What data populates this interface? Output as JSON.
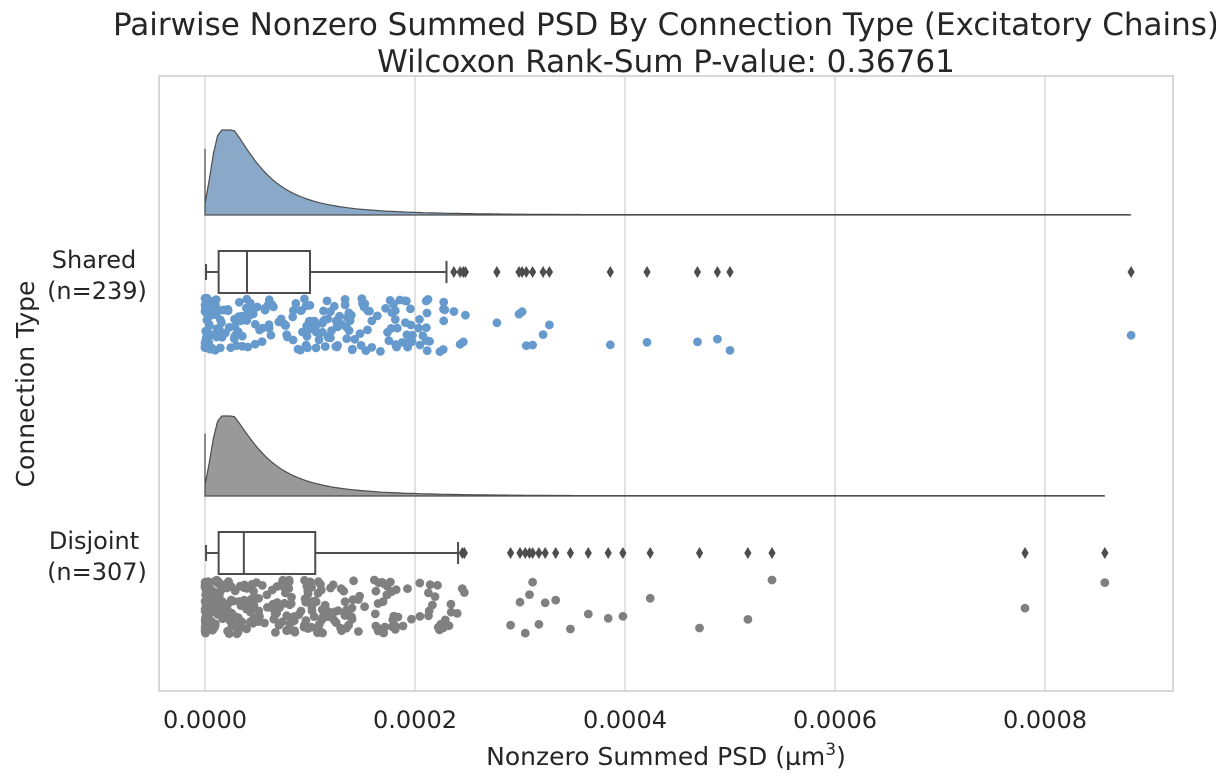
{
  "chart_data": {
    "type": "raincloud",
    "title_line1": "Pairwise Nonzero Summed PSD By Connection Type (Excitatory Chains)",
    "title_line2": "Wilcoxon Rank-Sum P-value: 0.36761",
    "xlabel": "Nonzero Summed PSD (µm",
    "xlabel_sup": "3",
    "xlabel_close": ")",
    "ylabel": "Connection Type",
    "xlim": [
      -5.5e-05,
      0.000925
    ],
    "xticks": [
      0.0,
      0.0002,
      0.0004,
      0.0006,
      0.0008
    ],
    "xtick_labels": [
      "0.0000",
      "0.0002",
      "0.0004",
      "0.0006",
      "0.0008"
    ],
    "grid": true,
    "groups": [
      {
        "label_line1": "Shared",
        "label_line2": "(n=239)",
        "color": "#6699cc",
        "cloud_color": "#8aa9c8",
        "box": {
          "min": 1e-06,
          "q1": 1.3e-05,
          "median": 4e-05,
          "q3": 0.0001,
          "whisker_high": 0.00023
        },
        "outliers": [
          0.000237,
          0.000243,
          0.000246,
          0.000248,
          0.000278,
          0.000299,
          0.000302,
          0.000306,
          0.000312,
          0.000322,
          0.000328,
          0.000386,
          0.000421,
          0.000469,
          0.000488,
          0.0005,
          0.000882
        ],
        "density_peak": 2e-05,
        "density_max_x": 0.000882
      },
      {
        "label_line1": "Disjoint",
        "label_line2": "(n=307)",
        "color": "#808080",
        "cloud_color": "#999999",
        "box": {
          "min": 1e-06,
          "q1": 1.3e-05,
          "median": 3.7e-05,
          "q3": 0.000105,
          "whisker_high": 0.000241
        },
        "outliers": [
          0.000245,
          0.000247,
          0.000291,
          0.0003,
          0.000305,
          0.000309,
          0.000312,
          0.000318,
          0.000324,
          0.000334,
          0.000348,
          0.000365,
          0.000384,
          0.000398,
          0.000424,
          0.000471,
          0.000517,
          0.00054,
          0.000781,
          0.000857
        ],
        "density_peak": 2e-05,
        "density_max_x": 0.000857
      }
    ]
  }
}
